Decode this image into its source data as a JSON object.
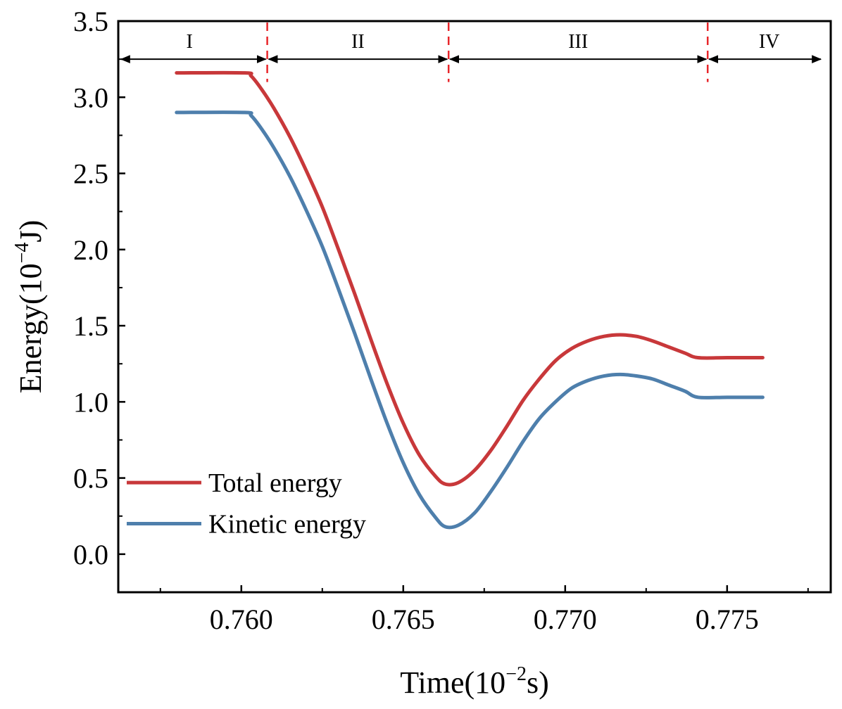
{
  "chart_data": {
    "type": "line",
    "title": "",
    "xlabel": "Time(10",
    "xlabel_sup": "−2",
    "xlabel_tail": "s)",
    "ylabel": "Energy(10",
    "ylabel_sup": "−4",
    "ylabel_tail": "J)",
    "xlim": [
      0.7562,
      0.7782
    ],
    "ylim": [
      -0.25,
      3.5
    ],
    "xticks": [
      0.76,
      0.765,
      0.77,
      0.775
    ],
    "xtick_labels": [
      "0.760",
      "0.765",
      "0.770",
      "0.775"
    ],
    "yticks": [
      0.0,
      0.5,
      1.0,
      1.5,
      2.0,
      2.5,
      3.0,
      3.5
    ],
    "ytick_labels": [
      "0.0",
      "0.5",
      "1.0",
      "1.5",
      "2.0",
      "2.5",
      "3.0",
      "3.5"
    ],
    "grid": false,
    "legend_position": "bottom-left",
    "series": [
      {
        "name": "Total energy",
        "color": "#c8383a",
        "x": [
          0.758,
          0.7601,
          0.7603,
          0.7606,
          0.761,
          0.7615,
          0.762,
          0.7625,
          0.763,
          0.7635,
          0.764,
          0.7645,
          0.765,
          0.7655,
          0.766,
          0.7663,
          0.7667,
          0.7672,
          0.7677,
          0.7682,
          0.7687,
          0.7692,
          0.7697,
          0.7702,
          0.7707,
          0.7712,
          0.7717,
          0.7722,
          0.7727,
          0.7732,
          0.7737,
          0.7741,
          0.775,
          0.7761
        ],
        "y": [
          3.16,
          3.16,
          3.14,
          3.06,
          2.93,
          2.74,
          2.52,
          2.28,
          2.0,
          1.71,
          1.41,
          1.12,
          0.86,
          0.65,
          0.51,
          0.46,
          0.47,
          0.55,
          0.68,
          0.84,
          1.01,
          1.15,
          1.27,
          1.35,
          1.4,
          1.43,
          1.44,
          1.43,
          1.4,
          1.36,
          1.32,
          1.29,
          1.29,
          1.29
        ]
      },
      {
        "name": "Kinetic energy",
        "color": "#4e7fac",
        "x": [
          0.758,
          0.7601,
          0.7603,
          0.7606,
          0.761,
          0.7615,
          0.762,
          0.7625,
          0.763,
          0.7635,
          0.764,
          0.7645,
          0.765,
          0.7655,
          0.766,
          0.7663,
          0.7667,
          0.7672,
          0.7677,
          0.7682,
          0.7687,
          0.7692,
          0.7697,
          0.7702,
          0.7707,
          0.7712,
          0.7717,
          0.7722,
          0.7727,
          0.7732,
          0.7737,
          0.7741,
          0.775,
          0.7761
        ],
        "y": [
          2.9,
          2.9,
          2.88,
          2.8,
          2.67,
          2.48,
          2.26,
          2.02,
          1.74,
          1.45,
          1.15,
          0.86,
          0.6,
          0.39,
          0.24,
          0.18,
          0.19,
          0.27,
          0.41,
          0.57,
          0.74,
          0.89,
          1.0,
          1.09,
          1.14,
          1.17,
          1.18,
          1.17,
          1.15,
          1.11,
          1.07,
          1.03,
          1.03,
          1.03
        ]
      }
    ],
    "regions": {
      "boundaries": [
        0.7608,
        0.7664,
        0.7744
      ],
      "arrow_y": 3.25,
      "labels": [
        "I",
        "II",
        "III",
        "IV"
      ],
      "label_x": [
        0.7584,
        0.7636,
        0.7704,
        0.7763
      ]
    }
  }
}
